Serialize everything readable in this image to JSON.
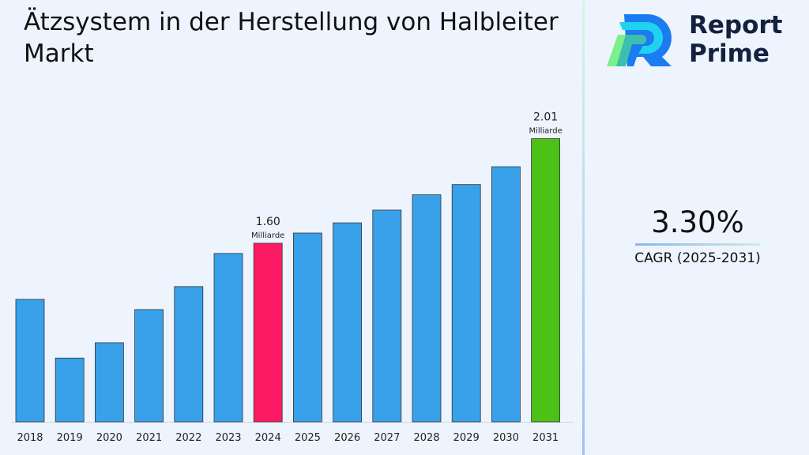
{
  "title": "Ätzsystem in der Herstellung von Halbleiter Markt",
  "logo": {
    "line1": "Report",
    "line2": "Prime"
  },
  "cagr": {
    "value": "3.30%",
    "label": "CAGR (2025-2031)"
  },
  "colors": {
    "default_bar": "#38a1ea",
    "highlight_2024": "#fd1a64",
    "highlight_2031": "#4cc116"
  },
  "chart_data": {
    "type": "bar",
    "title": "",
    "xlabel": "",
    "ylabel": "",
    "ylim": [
      0.9,
      2.12
    ],
    "grid": false,
    "categories": [
      "2018",
      "2019",
      "2020",
      "2021",
      "2022",
      "2023",
      "2024",
      "2025",
      "2026",
      "2027",
      "2028",
      "2029",
      "2030",
      "2031"
    ],
    "values": [
      1.38,
      1.15,
      1.21,
      1.34,
      1.43,
      1.56,
      1.6,
      1.64,
      1.68,
      1.73,
      1.79,
      1.83,
      1.9,
      2.01
    ],
    "annotations": [
      {
        "category": "2024",
        "value": "1.60",
        "unit": "Milliarde"
      },
      {
        "category": "2031",
        "value": "2.01",
        "unit": "Milliarde"
      }
    ]
  }
}
